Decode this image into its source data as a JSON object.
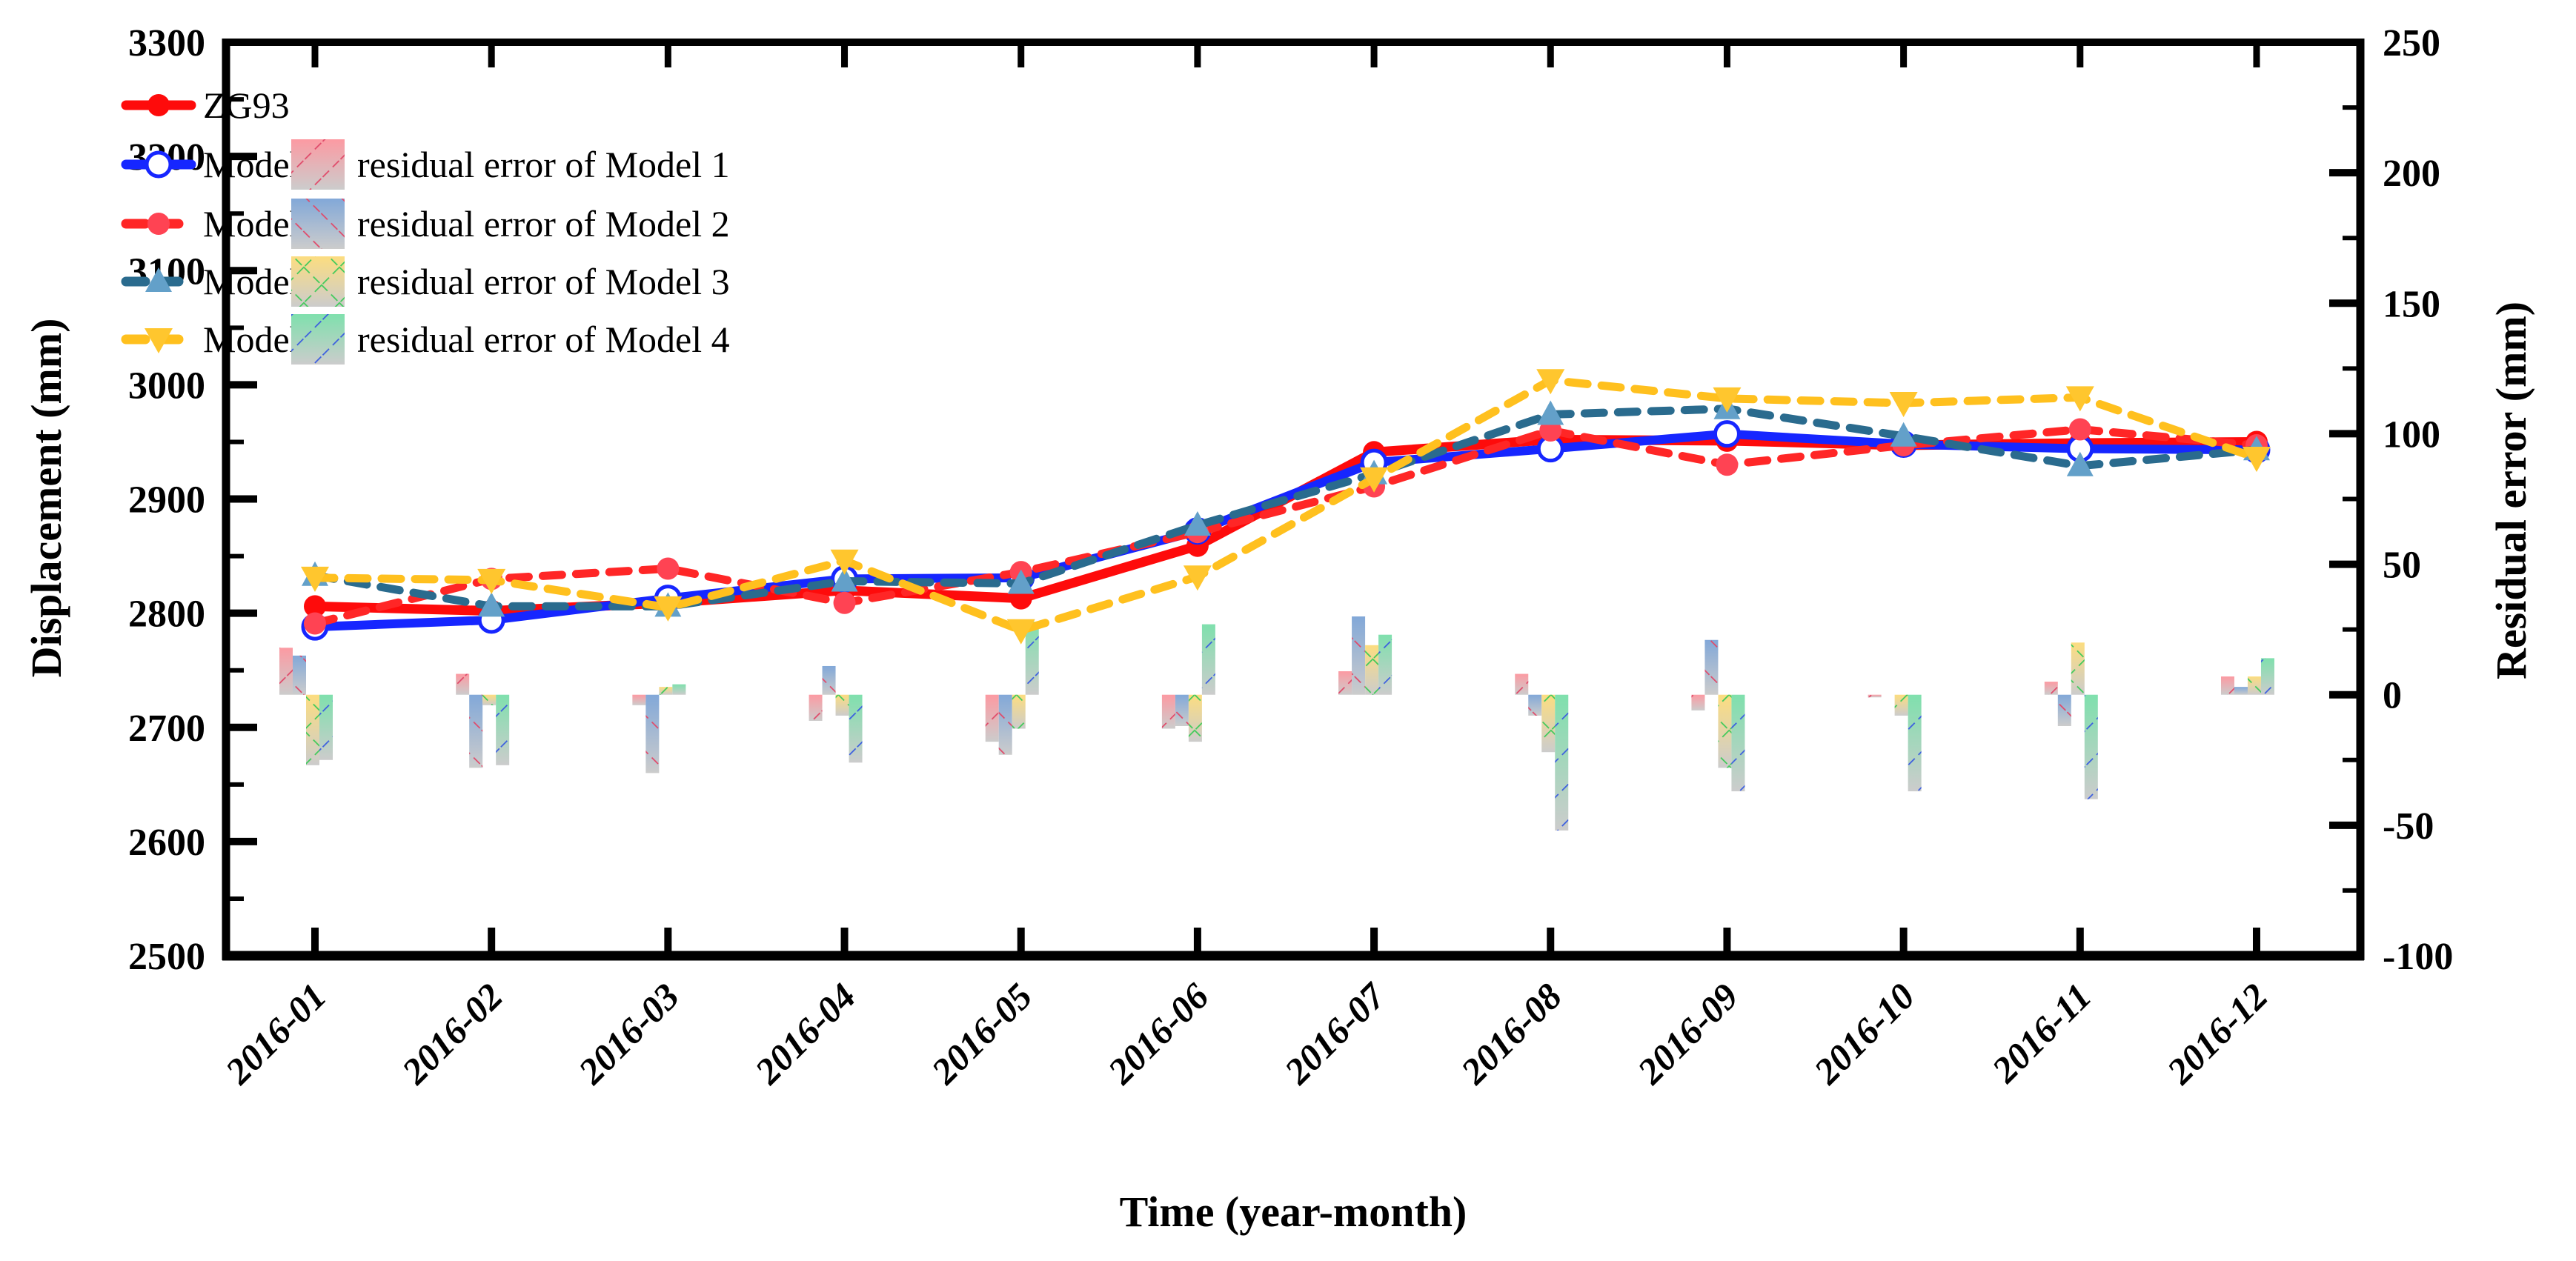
{
  "figure": {
    "xlabel": "Time (year-month)",
    "ylabel_left": "Displacement (mm)",
    "ylabel_right": "Residual error (mm)"
  },
  "chart_data": {
    "type": "line+bar",
    "title": "",
    "xlabel": "Time (year-month)",
    "categories": [
      "2016-01",
      "2016-02",
      "2016-03",
      "2016-04",
      "2016-05",
      "2016-06",
      "2016-07",
      "2016-08",
      "2016-09",
      "2016-10",
      "2016-11",
      "2016-12"
    ],
    "left_axis": {
      "label": "Displacement (mm)",
      "min": 2500,
      "max": 3300,
      "major_step": 100,
      "minor_step": 50,
      "tick_labels": [
        "2500",
        "2600",
        "2700",
        "2800",
        "2900",
        "3000",
        "3100",
        "3200",
        "3300"
      ]
    },
    "right_axis": {
      "label": "Residual error (mm)",
      "min": -100,
      "max": 250,
      "major_step": 50,
      "minor_step": 25,
      "tick_labels": [
        "-100",
        "-50",
        "0",
        "50",
        "100",
        "150",
        "200",
        "250"
      ]
    },
    "grid": false,
    "legend_position": "upper-left-inside",
    "line_series": [
      {
        "name": "ZG93",
        "color": "#fe0b0b",
        "style": "solid",
        "marker": "circle",
        "marker_color": "#fe0b0b",
        "width": 13,
        "values": [
          2806,
          2802,
          2809,
          2820,
          2813,
          2859,
          2941,
          2952,
          2951,
          2947,
          2949,
          2950
        ]
      },
      {
        "name": "Model 1",
        "color": "#1626ff",
        "style": "solid",
        "marker": "circle-open",
        "marker_color": "#1626ff",
        "width": 12,
        "values": [
          2788,
          2794,
          2813,
          2830,
          2831,
          2872,
          2932,
          2944,
          2957,
          2948,
          2944,
          2943
        ]
      },
      {
        "name": "Model 2",
        "color": "#ff2626",
        "style": "dashed",
        "marker": "circle",
        "marker_color": "#ff4353",
        "width": 11,
        "values": [
          2791,
          2830,
          2839,
          2809,
          2836,
          2871,
          2911,
          2960,
          2930,
          2947,
          2961,
          2947
        ]
      },
      {
        "name": "Model 3",
        "color": "#2a6b8e",
        "style": "dashed",
        "marker": "triangle-up",
        "marker_color": "#63a0c9",
        "width": 11,
        "values": [
          2833,
          2806,
          2806,
          2828,
          2826,
          2877,
          2922,
          2974,
          2979,
          2955,
          2929,
          2943
        ]
      },
      {
        "name": "Model 4",
        "color": "#ffc01e",
        "style": "dashed",
        "marker": "triangle-down",
        "marker_color": "#ffc62e",
        "width": 11,
        "values": [
          2831,
          2829,
          2805,
          2846,
          2785,
          2832,
          2918,
          3004,
          2988,
          2984,
          2989,
          2936
        ]
      }
    ],
    "bar_series": [
      {
        "name": "residual error of Model 1",
        "top_color": "#fc9aa2",
        "bottom_color": "#cccccc",
        "hatch": "slash",
        "hatch_color": "#e04a6a",
        "values": [
          18,
          8,
          -4,
          -10,
          -18,
          -13,
          9,
          8,
          -6,
          -1,
          5,
          7
        ]
      },
      {
        "name": "residual error of Model 2",
        "top_color": "#82a8d8",
        "bottom_color": "#cccccc",
        "hatch": "backslash",
        "hatch_color": "#e04a6a",
        "values": [
          15,
          -28,
          -30,
          11,
          -23,
          -12,
          30,
          -8,
          21,
          0,
          -12,
          3
        ]
      },
      {
        "name": "residual error of Model 3",
        "top_color": "#fcdd80",
        "bottom_color": "#cccccc",
        "hatch": "cross",
        "hatch_color": "#3fca5a",
        "values": [
          -27,
          -4,
          3,
          -8,
          -13,
          -18,
          19,
          -22,
          -28,
          -8,
          20,
          7
        ]
      },
      {
        "name": "residual error of Model 4",
        "top_color": "#7fe0ad",
        "bottom_color": "#cccccc",
        "hatch": "slash",
        "hatch_color": "#3b5de0",
        "values": [
          -25,
          -27,
          4,
          -26,
          28,
          27,
          23,
          -52,
          -37,
          -37,
          -40,
          14
        ]
      }
    ]
  }
}
